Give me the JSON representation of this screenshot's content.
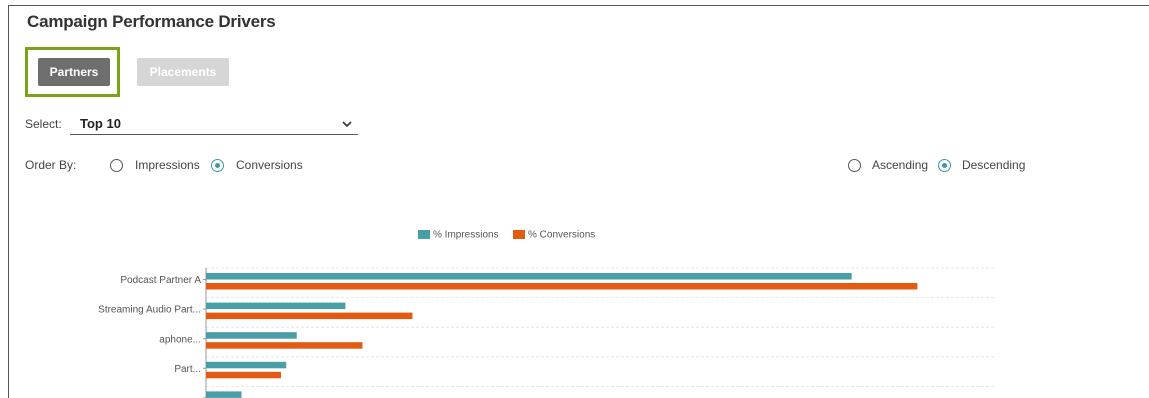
{
  "header": {
    "title": "Campaign Performance Drivers"
  },
  "tabs": {
    "items": [
      "Partners",
      "Placements"
    ],
    "active_index": 0
  },
  "select": {
    "label": "Select:",
    "value": "Top 10"
  },
  "order_by": {
    "label": "Order By:",
    "options": [
      "Impressions",
      "Conversions"
    ],
    "selected_index": 1
  },
  "sort": {
    "options": [
      "Ascending",
      "Descending"
    ],
    "selected_index": 1
  },
  "chart_data": {
    "type": "bar",
    "orientation": "horizontal",
    "categories": [
      "Podcast Partner A",
      "Streaming Audio Part...",
      "aphone...",
      "Part...",
      null
    ],
    "series": [
      {
        "name": "% Impressions",
        "color": "#4a9ea6",
        "values": [
          49.1,
          10.6,
          6.9,
          6.1,
          2.7
        ]
      },
      {
        "name": "% Conversions",
        "color": "#e35b12",
        "values": [
          54.1,
          15.7,
          11.9,
          5.7,
          null
        ]
      }
    ],
    "xlim": [
      0,
      60
    ],
    "grid": true
  }
}
